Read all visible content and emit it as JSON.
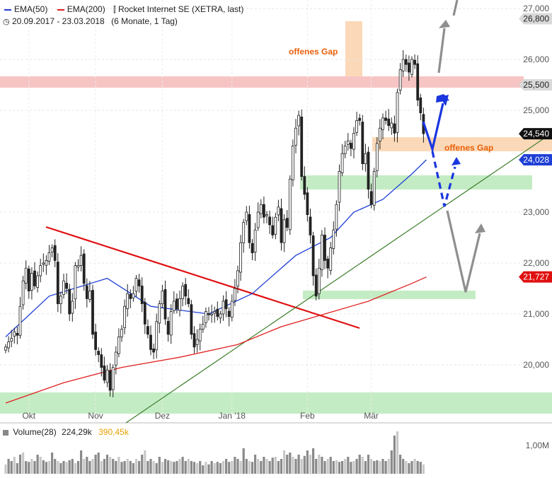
{
  "legend": {
    "ema50": "EMA(50)",
    "ema200": "EMA(200)",
    "instrument": "Rocket Internet SE (XETRA, last)",
    "range": "20.09.2017 - 23.03.2018",
    "range_detail": "(6 Monate, 1 Tag)"
  },
  "volume": {
    "label": "Volume(28)",
    "value": "224,29k",
    "avg": "390,45k",
    "axis_label": "1,00M"
  },
  "annotations": {
    "gap_top": "offenes Gap",
    "gap_bottom": "offenes Gap"
  },
  "colors": {
    "candle": "#222222",
    "ema50": "#1f3fd6",
    "ema200": "#e02020",
    "trend_red": "#e01010",
    "trend_green": "#3b7d2a",
    "zone_green": "#c4ecc4",
    "zone_red": "#f7c4c4",
    "zone_orange": "#fbd9b8",
    "gap_text": "#e8600a",
    "arrow_blue": "#1a36e0",
    "arrow_gray": "#8f8f8f"
  },
  "chart_data": {
    "type": "candlestick",
    "title": "Rocket Internet SE (XETRA, last)",
    "period": "20.09.2017 - 23.03.2018",
    "ylim": [
      19200,
      27100
    ],
    "yticks": [
      {
        "value": 27000,
        "label": "27,000"
      },
      {
        "value": 26000,
        "label": "26,000"
      },
      {
        "value": 25000,
        "label": "25,000"
      },
      {
        "value": 23000,
        "label": "23,000"
      },
      {
        "value": 22000,
        "label": "22,000"
      },
      {
        "value": 21000,
        "label": "21,000"
      },
      {
        "value": 20000,
        "label": "20,000"
      }
    ],
    "months": [
      {
        "label": "Okt",
        "day": 8
      },
      {
        "label": "Nov",
        "day": 31
      },
      {
        "label": "Dez",
        "day": 54
      },
      {
        "label": "Jan '18",
        "day": 78
      },
      {
        "label": "Feb",
        "day": 104
      },
      {
        "label": "Mär",
        "day": 126
      }
    ],
    "price_labels": [
      {
        "label": "26,800",
        "value": 26800,
        "kind": "gray"
      },
      {
        "label": "25,500",
        "value": 25500,
        "kind": "gray"
      },
      {
        "label": "24,540",
        "value": 24540,
        "kind": "black"
      },
      {
        "label": "24,028",
        "value": 24028,
        "kind": "blue"
      },
      {
        "label": "21,727",
        "value": 21727,
        "kind": "red"
      }
    ],
    "closes": [
      20350,
      20450,
      20520,
      20650,
      20580,
      21150,
      21650,
      21900,
      21450,
      21800,
      21550,
      21750,
      21950,
      22000,
      22050,
      22200,
      22300,
      22050,
      21200,
      21350,
      21650,
      21500,
      21000,
      21250,
      21950,
      21950,
      22150,
      21600,
      21300,
      21450,
      20600,
      20300,
      20200,
      19950,
      19700,
      19900,
      19500,
      19950,
      20250,
      20550,
      20700,
      21150,
      21400,
      21300,
      21400,
      21700,
      21550,
      21200,
      20800,
      20600,
      20300,
      20250,
      20850,
      21200,
      21450,
      20900,
      20600,
      21050,
      21250,
      21100,
      21300,
      21550,
      21350,
      21200,
      20600,
      20350,
      20500,
      20700,
      20800,
      21050,
      21000,
      21000,
      21050,
      20950,
      21000,
      21250,
      21100,
      20950,
      21250,
      21500,
      21850,
      22400,
      22800,
      23000,
      22400,
      22200,
      22650,
      23000,
      23150,
      22900,
      22950,
      22750,
      22550,
      22900,
      23100,
      22400,
      22850,
      22700,
      23650,
      24300,
      24650,
      24900,
      23700,
      23350,
      22950,
      22550,
      21750,
      21350,
      21900,
      22550,
      22050,
      21900,
      22300,
      22650,
      23150,
      23800,
      24150,
      24300,
      24400,
      24250,
      24550,
      24800,
      24800,
      23950,
      24150,
      23450,
      23150,
      23800,
      24350,
      24650,
      24850,
      24800,
      24700,
      24750,
      24550,
      25350,
      25800,
      26000,
      25900,
      25750,
      26000,
      25900,
      25200,
      24950,
      24540
    ],
    "bodies_px": "layout only",
    "ema50": [
      [
        0,
        20550
      ],
      [
        15,
        21350
      ],
      [
        35,
        21700
      ],
      [
        50,
        21150
      ],
      [
        70,
        21000
      ],
      [
        85,
        21400
      ],
      [
        100,
        22150
      ],
      [
        112,
        22500
      ],
      [
        120,
        23000
      ],
      [
        130,
        23250
      ],
      [
        140,
        23750
      ],
      [
        145,
        24028
      ]
    ],
    "ema200": [
      [
        0,
        19250
      ],
      [
        20,
        19650
      ],
      [
        40,
        19950
      ],
      [
        60,
        20150
      ],
      [
        80,
        20400
      ],
      [
        95,
        20750
      ],
      [
        110,
        21000
      ],
      [
        125,
        21250
      ],
      [
        140,
        21600
      ],
      [
        145,
        21727
      ]
    ],
    "volume": [
      0.22,
      0.35,
      0.3,
      0.4,
      0.25,
      0.45,
      0.5,
      0.3,
      0.28,
      0.35,
      0.3,
      0.45,
      0.4,
      0.32,
      0.28,
      0.3,
      0.5,
      0.35,
      0.3,
      0.25,
      0.3,
      0.28,
      0.32,
      0.35,
      0.25,
      0.3,
      0.55,
      0.35,
      0.4,
      0.3,
      0.35,
      0.45,
      0.5,
      0.3,
      0.35,
      0.45,
      0.4,
      0.35,
      0.3,
      0.4,
      0.28,
      0.3,
      0.35,
      0.3,
      0.25,
      0.35,
      0.3,
      0.45,
      0.55,
      0.3,
      0.35,
      0.3,
      0.25,
      0.4,
      0.28,
      0.35,
      0.32,
      0.3,
      0.28,
      0.3,
      0.35,
      0.4,
      0.3,
      0.35,
      0.3,
      0.28,
      0.25,
      0.3,
      0.2,
      0.28,
      0.22,
      0.3,
      0.25,
      0.28,
      0.25,
      0.3,
      0.35,
      0.28,
      0.3,
      0.4,
      0.35,
      0.3,
      0.6,
      0.35,
      0.3,
      0.28,
      0.45,
      0.35,
      0.3,
      0.4,
      0.35,
      0.3,
      0.38,
      0.4,
      0.3,
      0.35,
      0.55,
      0.45,
      0.5,
      0.4,
      0.35,
      0.45,
      0.35,
      0.42,
      0.55,
      0.45,
      0.6,
      0.35,
      0.45,
      0.4,
      0.3,
      0.35,
      0.4,
      0.3,
      0.32,
      0.28,
      0.3,
      0.35,
      0.4,
      0.28,
      0.3,
      0.35,
      0.45,
      0.4,
      0.3,
      0.45,
      0.35,
      0.3,
      0.32,
      0.3,
      0.35,
      0.3,
      0.35,
      0.55,
      0.9,
      1.0,
      0.45,
      0.35,
      0.3,
      0.25,
      0.3,
      0.35,
      0.3,
      0.28,
      0.22
    ]
  }
}
